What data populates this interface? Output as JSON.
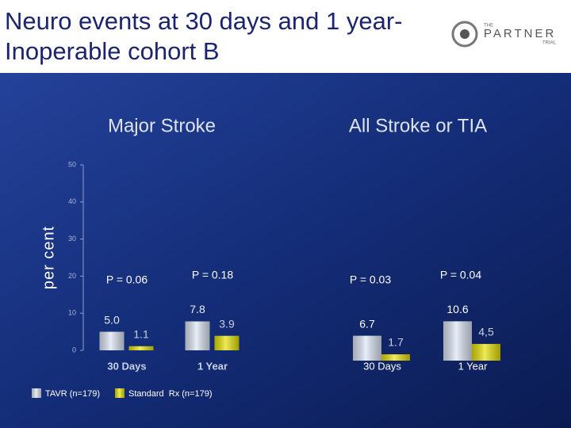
{
  "header": {
    "title": "Neuro events at 30 days and 1 year-  Inoperable cohort B",
    "logo": {
      "small": "THE",
      "main": "PARTNER",
      "sub": "TRIAL"
    }
  },
  "chart_data": [
    {
      "type": "bar",
      "title": "Major Stroke",
      "y_label": "per cent",
      "categories": [
        "30 Days",
        "1 Year"
      ],
      "series": [
        {
          "name": "TAVR (n=179)",
          "color": "#dce4f4",
          "values": [
            5.0,
            7.8
          ],
          "value_labels": [
            "5.0",
            "7.8"
          ]
        },
        {
          "name": "Standard  Rx (n=179)",
          "color": "#e6e000",
          "values": [
            1.1,
            3.9
          ],
          "value_labels": [
            "1.1",
            "3.9"
          ]
        }
      ],
      "annotations": [
        "P = 0.06",
        "P = 0.18"
      ],
      "ylim": [
        0,
        50
      ],
      "yticks": [
        0,
        10,
        20,
        30,
        40,
        50
      ]
    },
    {
      "type": "bar",
      "title": "All Stroke or TIA",
      "categories": [
        "30 Days",
        "1 Year"
      ],
      "series": [
        {
          "name": "TAVR (n=179)",
          "color": "#dce4f4",
          "values": [
            6.7,
            10.6
          ],
          "value_labels": [
            "6.7",
            "10.6"
          ]
        },
        {
          "name": "Standard  Rx (n=179)",
          "color": "#e6e000",
          "values": [
            1.7,
            4.5
          ],
          "value_labels": [
            "1.7",
            "4,5"
          ]
        }
      ],
      "annotations": [
        "P = 0.03",
        "P = 0.04"
      ]
    }
  ]
}
